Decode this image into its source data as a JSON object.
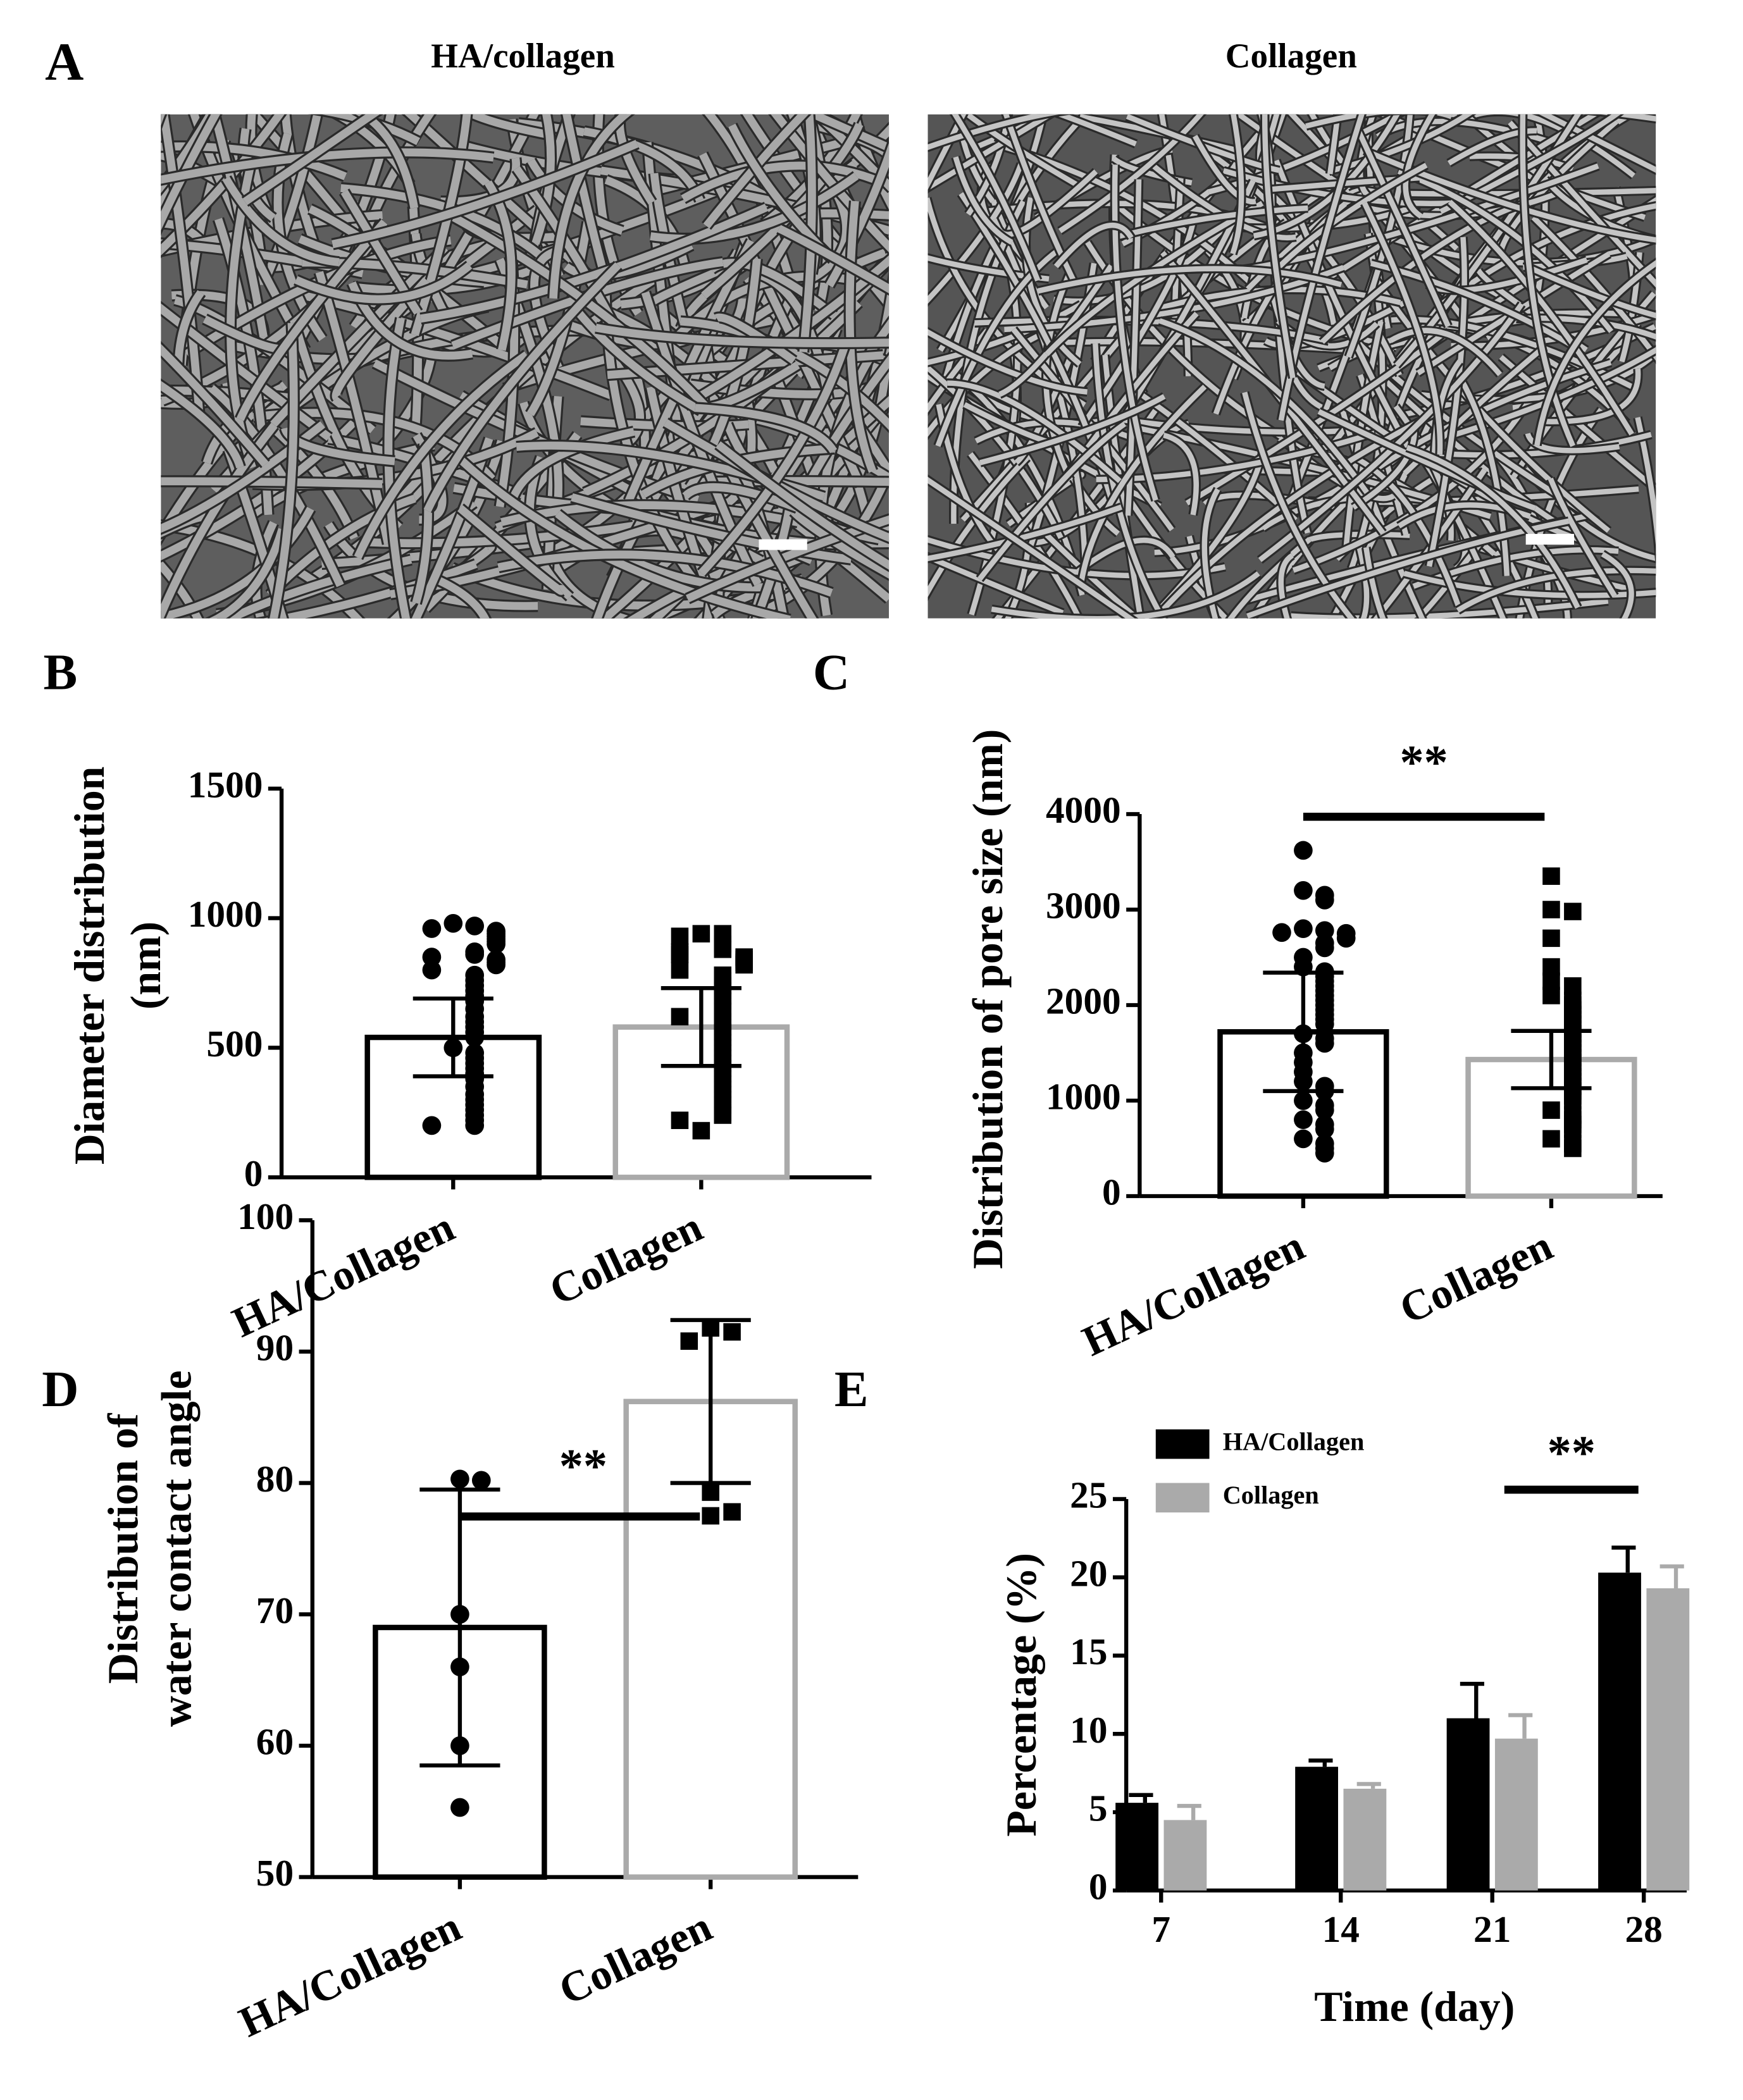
{
  "panel_a": {
    "label": "A",
    "titles": [
      "HA/collagen",
      "Collagen"
    ]
  },
  "chart_data": [
    {
      "type": "bar-scatter",
      "panel": "B",
      "ylabel": [
        "Diameter distribution",
        "(nm)"
      ],
      "categories": [
        "HA/Collagen",
        "Collagen"
      ],
      "values": [
        540,
        580
      ],
      "errors": [
        150,
        150
      ],
      "colors": [
        "#000000",
        "#aaaaaa"
      ],
      "markers": [
        "circle",
        "square"
      ],
      "points": [
        [
          980,
          970,
          960,
          950,
          940,
          930,
          920,
          910,
          900,
          870,
          860,
          850,
          840,
          830,
          820,
          800,
          780,
          760,
          740,
          720,
          700,
          680,
          650,
          620,
          600,
          580,
          560,
          540,
          500,
          480,
          460,
          440,
          420,
          400,
          380,
          350,
          320,
          300,
          280,
          260,
          240,
          220,
          200,
          200
        ],
        [
          940,
          940,
          930,
          900,
          880,
          870,
          860,
          850,
          840,
          830,
          820,
          800,
          780,
          760,
          740,
          720,
          700,
          680,
          650,
          640,
          620,
          600,
          580,
          560,
          540,
          520,
          500,
          480,
          460,
          440,
          420,
          400,
          380,
          360,
          340,
          320,
          300,
          280,
          250,
          240,
          220,
          180
        ]
      ],
      "ylim": [
        0,
        1500
      ],
      "yticks": [
        0,
        500,
        1000,
        1500
      ]
    },
    {
      "type": "bar-scatter",
      "panel": "C",
      "ylabel": "Distribution of pore size (nm)",
      "categories": [
        "HA/Collagen",
        "Collagen"
      ],
      "values": [
        1720,
        1430
      ],
      "errors": [
        620,
        300
      ],
      "colors": [
        "#000000",
        "#aaaaaa"
      ],
      "markers": [
        "circle",
        "square"
      ],
      "points": [
        [
          3620,
          3200,
          3150,
          3100,
          2800,
          2780,
          2760,
          2750,
          2700,
          2650,
          2600,
          2500,
          2400,
          2350,
          2300,
          2250,
          2200,
          2150,
          2100,
          2050,
          2000,
          1950,
          1900,
          1850,
          1800,
          1700,
          1650,
          1600,
          1500,
          1400,
          1300,
          1200,
          1150,
          1100,
          1000,
          950,
          900,
          800,
          750,
          700,
          600,
          550,
          500,
          450
        ],
        [
          3350,
          3000,
          2980,
          2700,
          2400,
          2250,
          2200,
          2100,
          2050,
          2000,
          1950,
          1900,
          1850,
          1800,
          1750,
          1700,
          1650,
          1600,
          1550,
          1500,
          1450,
          1400,
          1350,
          1300,
          1250,
          1200,
          1150,
          1100,
          1050,
          1000,
          900,
          850,
          800,
          750,
          700,
          600,
          550,
          500
        ]
      ],
      "ylim": [
        0,
        4000
      ],
      "yticks": [
        0,
        1000,
        2000,
        3000,
        4000
      ],
      "annotation": "**"
    },
    {
      "type": "bar-scatter",
      "panel": "D",
      "ylabel": [
        "Distribution of",
        "water contact angle"
      ],
      "categories": [
        "HA/Collagen",
        "Collagen"
      ],
      "values": [
        69,
        86.2
      ],
      "errors": [
        10.5,
        6.2
      ],
      "colors": [
        "#000000",
        "#aaaaaa"
      ],
      "markers": [
        "circle",
        "square"
      ],
      "points": [
        [
          80.3,
          80.2,
          70,
          66,
          60,
          55.3
        ],
        [
          91.8,
          91.5,
          90.8,
          79.3,
          77.5,
          77.8
        ]
      ],
      "ylim": [
        50,
        100
      ],
      "yticks": [
        50,
        60,
        70,
        80,
        90,
        100
      ],
      "annotation": "**"
    },
    {
      "type": "bar",
      "panel": "E",
      "xlabel": "Time (day)",
      "ylabel": "Percentage (%)",
      "categories": [
        "7",
        "14",
        "21",
        "28"
      ],
      "series": [
        {
          "name": "HA/Collagen",
          "color": "#000000",
          "values": [
            5.6,
            7.9,
            11.0,
            20.3
          ],
          "errors": [
            0.5,
            0.4,
            2.2,
            1.6
          ]
        },
        {
          "name": "Collagen",
          "color": "#aaaaaa",
          "values": [
            4.5,
            6.5,
            9.7,
            19.3
          ],
          "errors": [
            0.9,
            0.3,
            1.5,
            1.4
          ]
        }
      ],
      "ylim": [
        0,
        25
      ],
      "yticks": [
        0,
        5,
        10,
        15,
        20,
        25
      ],
      "annotation": "**",
      "legend": "top-left"
    }
  ]
}
